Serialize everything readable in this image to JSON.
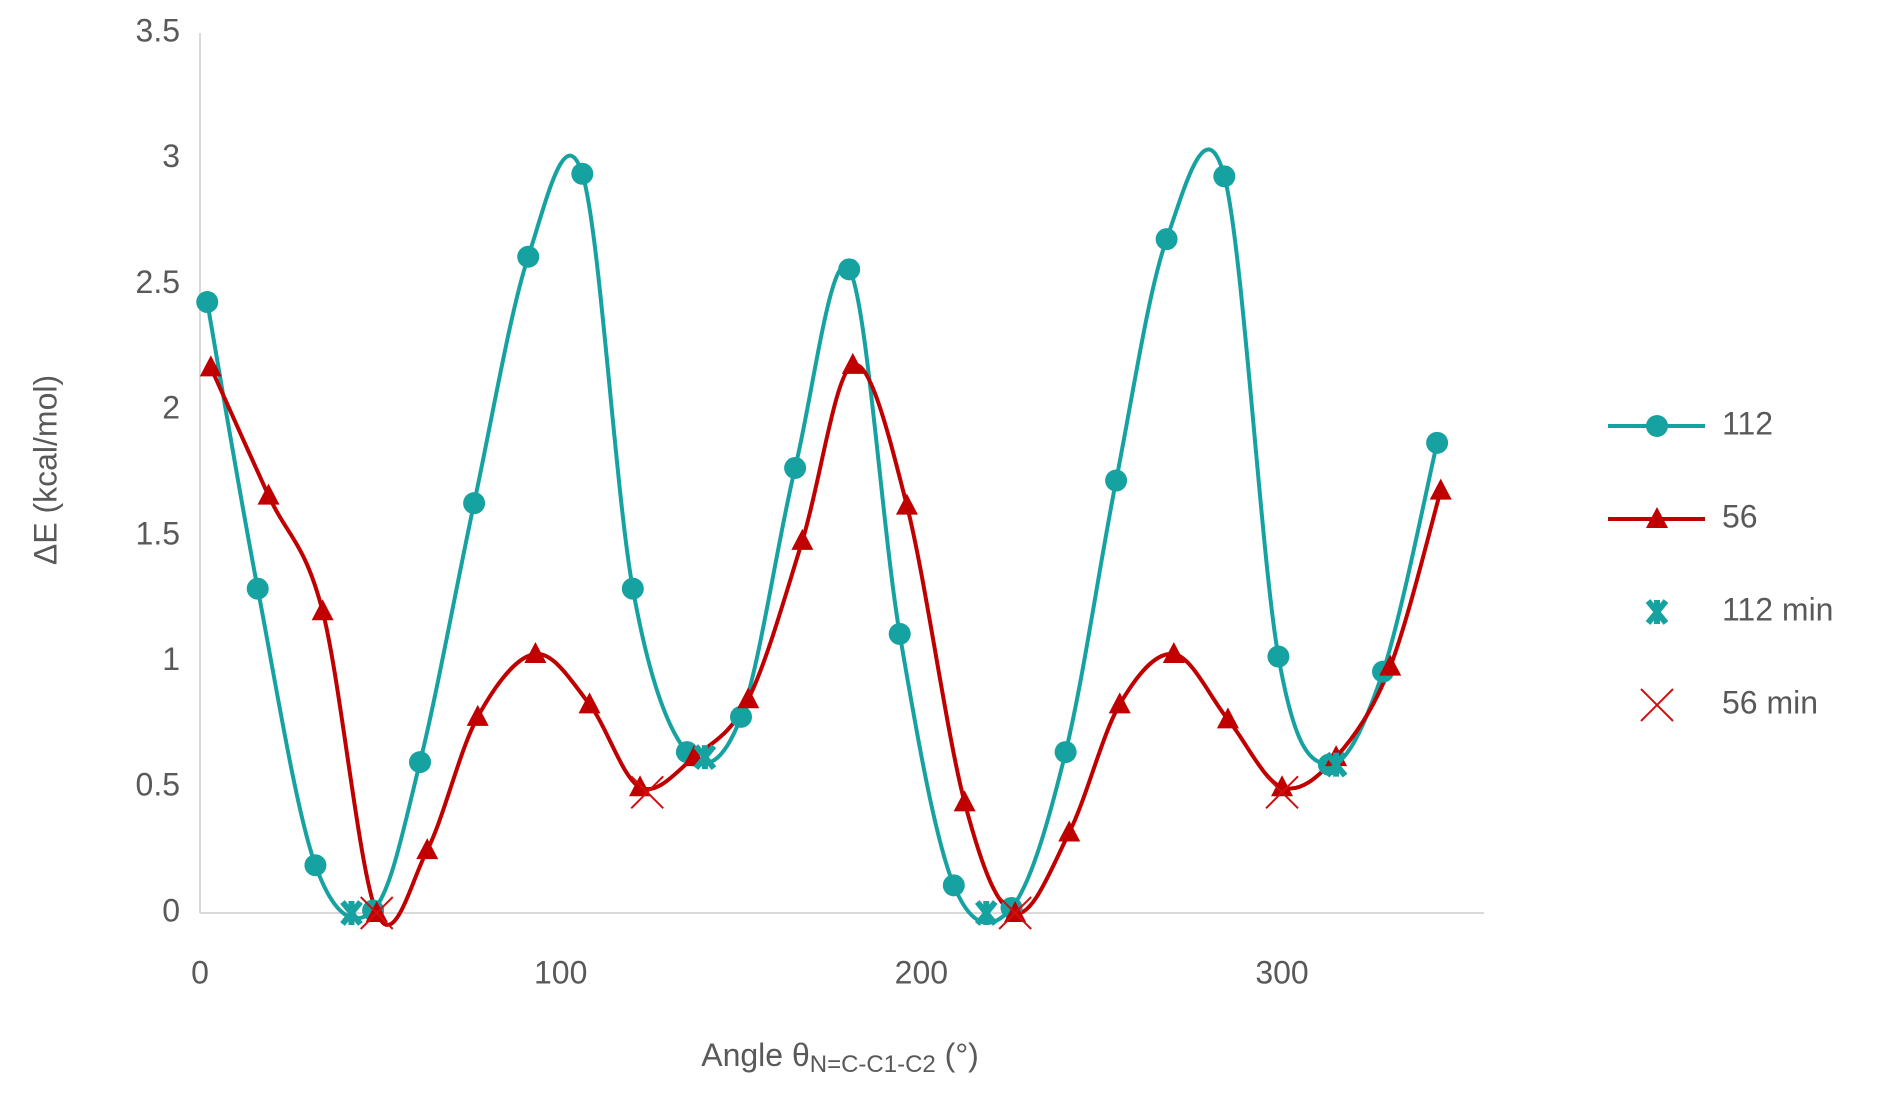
{
  "chart_data": {
    "type": "line",
    "y_label": "ΔE (kcal/mol)",
    "x_label": "Angle θ",
    "x_label_sub": "N=C-C1-C2",
    "x_label_end": " (°)",
    "xlim": [
      0,
      356
    ],
    "xticks": [
      0,
      100,
      200,
      300
    ],
    "ylim": [
      0,
      3.5
    ],
    "yticks": [
      0,
      0.5,
      1,
      1.5,
      2,
      2.5,
      3,
      3.5
    ],
    "series": [
      {
        "name": "112",
        "color": "#17a2a2",
        "marker": "circle",
        "line": true,
        "x": [
          2,
          16,
          32,
          48,
          61,
          76,
          91,
          106,
          120,
          135,
          150,
          165,
          180,
          194,
          209,
          225,
          240,
          254,
          268,
          284,
          299,
          313,
          328,
          343
        ],
        "values": [
          2.43,
          1.29,
          0.19,
          0.01,
          0.6,
          1.63,
          2.61,
          2.94,
          1.29,
          0.64,
          0.78,
          1.77,
          2.56,
          1.11,
          0.11,
          0.02,
          0.64,
          1.72,
          2.68,
          2.93,
          1.02,
          0.59,
          0.96,
          1.87
        ]
      },
      {
        "name": "56",
        "color": "#c00000",
        "marker": "triangle",
        "line": true,
        "x": [
          3,
          19,
          34,
          49,
          63,
          77,
          93,
          108,
          122,
          137,
          152,
          167,
          181,
          196,
          212,
          226,
          241,
          255,
          270,
          285,
          300,
          315,
          330,
          344
        ],
        "values": [
          2.17,
          1.66,
          1.2,
          0,
          0.25,
          0.78,
          1.03,
          0.83,
          0.5,
          0.62,
          0.85,
          1.48,
          2.18,
          1.62,
          0.44,
          0,
          0.32,
          0.83,
          1.03,
          0.77,
          0.5,
          0.62,
          0.98,
          1.68
        ]
      },
      {
        "name": "112 min",
        "color": "#17a2a2",
        "marker": "star",
        "line": false,
        "x": [
          42,
          140,
          218,
          315
        ],
        "values": [
          0,
          0.62,
          0,
          0.59
        ]
      },
      {
        "name": "56 min",
        "color": "#d01010",
        "marker": "x",
        "line": false,
        "x": [
          49,
          124,
          226,
          300
        ],
        "values": [
          0,
          0.48,
          0,
          0.48
        ]
      }
    ]
  }
}
